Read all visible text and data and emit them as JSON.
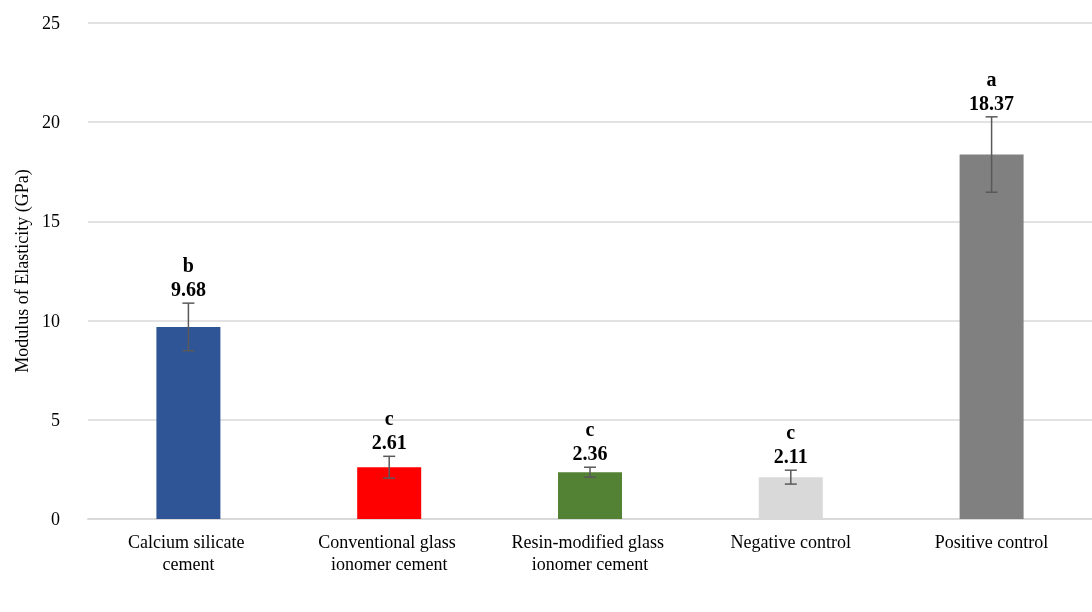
{
  "chart_data": {
    "type": "bar",
    "ylabel": "Modulus of Elasticity (GPa)",
    "categories": [
      "Calcium silicate cement",
      "Conventional glass ionomer cement",
      "Resin-modified glass ionomer cement",
      "Negative control",
      "Positive control"
    ],
    "values": [
      9.68,
      2.61,
      2.36,
      2.11,
      18.37
    ],
    "colors": [
      "#2f5597",
      "#ff0000",
      "#548235",
      "#d9d9d9",
      "#808080"
    ],
    "errors": [
      1.2,
      0.55,
      0.25,
      0.35,
      1.9
    ],
    "data_labels": true,
    "annotations": [
      "b",
      "c",
      "c",
      "c",
      "a"
    ],
    "ylim": [
      0,
      25
    ],
    "yticks": [
      0,
      5,
      10,
      15,
      20,
      25
    ],
    "grid": "y"
  }
}
